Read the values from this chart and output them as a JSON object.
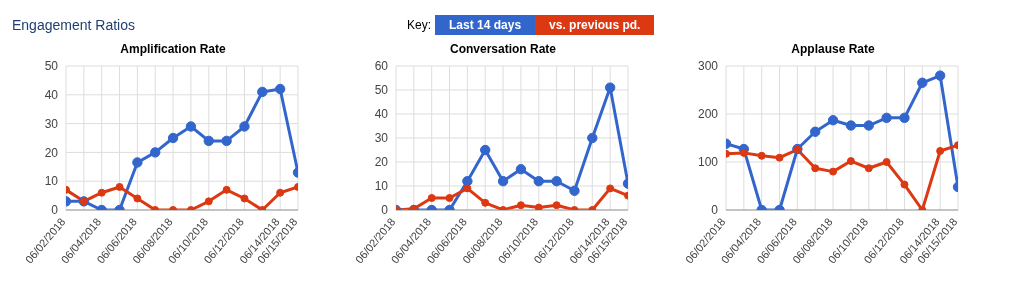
{
  "chart_data": [
    {
      "type": "other",
      "title": "Engagement Ratios"
    },
    {
      "type": "line",
      "title": "Amplification Rate",
      "legend": "top",
      "legend_title": "Key:",
      "grid": true,
      "marker": "circle",
      "line_style": "solid",
      "categories": [
        "06/02/2018",
        null,
        "06/04/2018",
        null,
        "06/06/2018",
        null,
        "06/08/2018",
        null,
        "06/10/2018",
        null,
        "06/12/2018",
        null,
        "06/14/2018",
        "06/15/2018"
      ],
      "ylim": [
        0,
        50
      ],
      "yticks": [
        0,
        10,
        20,
        30,
        40,
        50
      ],
      "series": [
        {
          "name": "Last 14 days",
          "color": "#3366cc",
          "values": [
            3,
            3,
            0,
            0,
            16.5,
            20,
            25,
            29,
            24,
            24,
            29,
            41,
            42,
            13
          ]
        },
        {
          "name": "vs. previous pd.",
          "color": "#dc3912",
          "values": [
            7,
            3,
            6,
            8,
            4,
            0,
            0,
            0,
            3,
            7,
            4,
            0,
            6,
            8
          ]
        }
      ]
    },
    {
      "type": "line",
      "title": "Conversation Rate",
      "grid": true,
      "marker": "circle",
      "line_style": "solid",
      "categories": [
        "06/02/2018",
        null,
        "06/04/2018",
        null,
        "06/06/2018",
        null,
        "06/08/2018",
        null,
        "06/10/2018",
        null,
        "06/12/2018",
        null,
        "06/14/2018",
        "06/15/2018"
      ],
      "ylim": [
        0,
        60
      ],
      "yticks": [
        0,
        10,
        20,
        30,
        40,
        50,
        60
      ],
      "series": [
        {
          "color": "#3366cc",
          "values": [
            0,
            0,
            0,
            0,
            12,
            25,
            12,
            17,
            12,
            12,
            8,
            30,
            51,
            11
          ]
        },
        {
          "color": "#dc3912",
          "values": [
            0,
            0.5,
            5,
            5,
            9,
            3,
            0,
            2,
            1,
            2,
            0,
            0,
            9,
            6
          ]
        }
      ]
    },
    {
      "type": "line",
      "title": "Applause Rate",
      "grid": true,
      "marker": "circle",
      "line_style": "solid",
      "categories": [
        "06/02/2018",
        null,
        "06/04/2018",
        null,
        "06/06/2018",
        null,
        "06/08/2018",
        null,
        "06/10/2018",
        null,
        "06/12/2018",
        null,
        "06/14/2018",
        "06/15/2018"
      ],
      "ylim": [
        0,
        300
      ],
      "yticks": [
        0,
        100,
        200,
        300
      ],
      "series": [
        {
          "color": "#3366cc",
          "values": [
            138,
            127,
            0,
            0,
            127,
            163,
            187,
            176,
            176,
            192,
            192,
            265,
            280,
            48
          ]
        },
        {
          "color": "#dc3912",
          "values": [
            117,
            119,
            113,
            109,
            126,
            87,
            80,
            102,
            87,
            100,
            53,
            0,
            123,
            135
          ]
        }
      ]
    }
  ]
}
